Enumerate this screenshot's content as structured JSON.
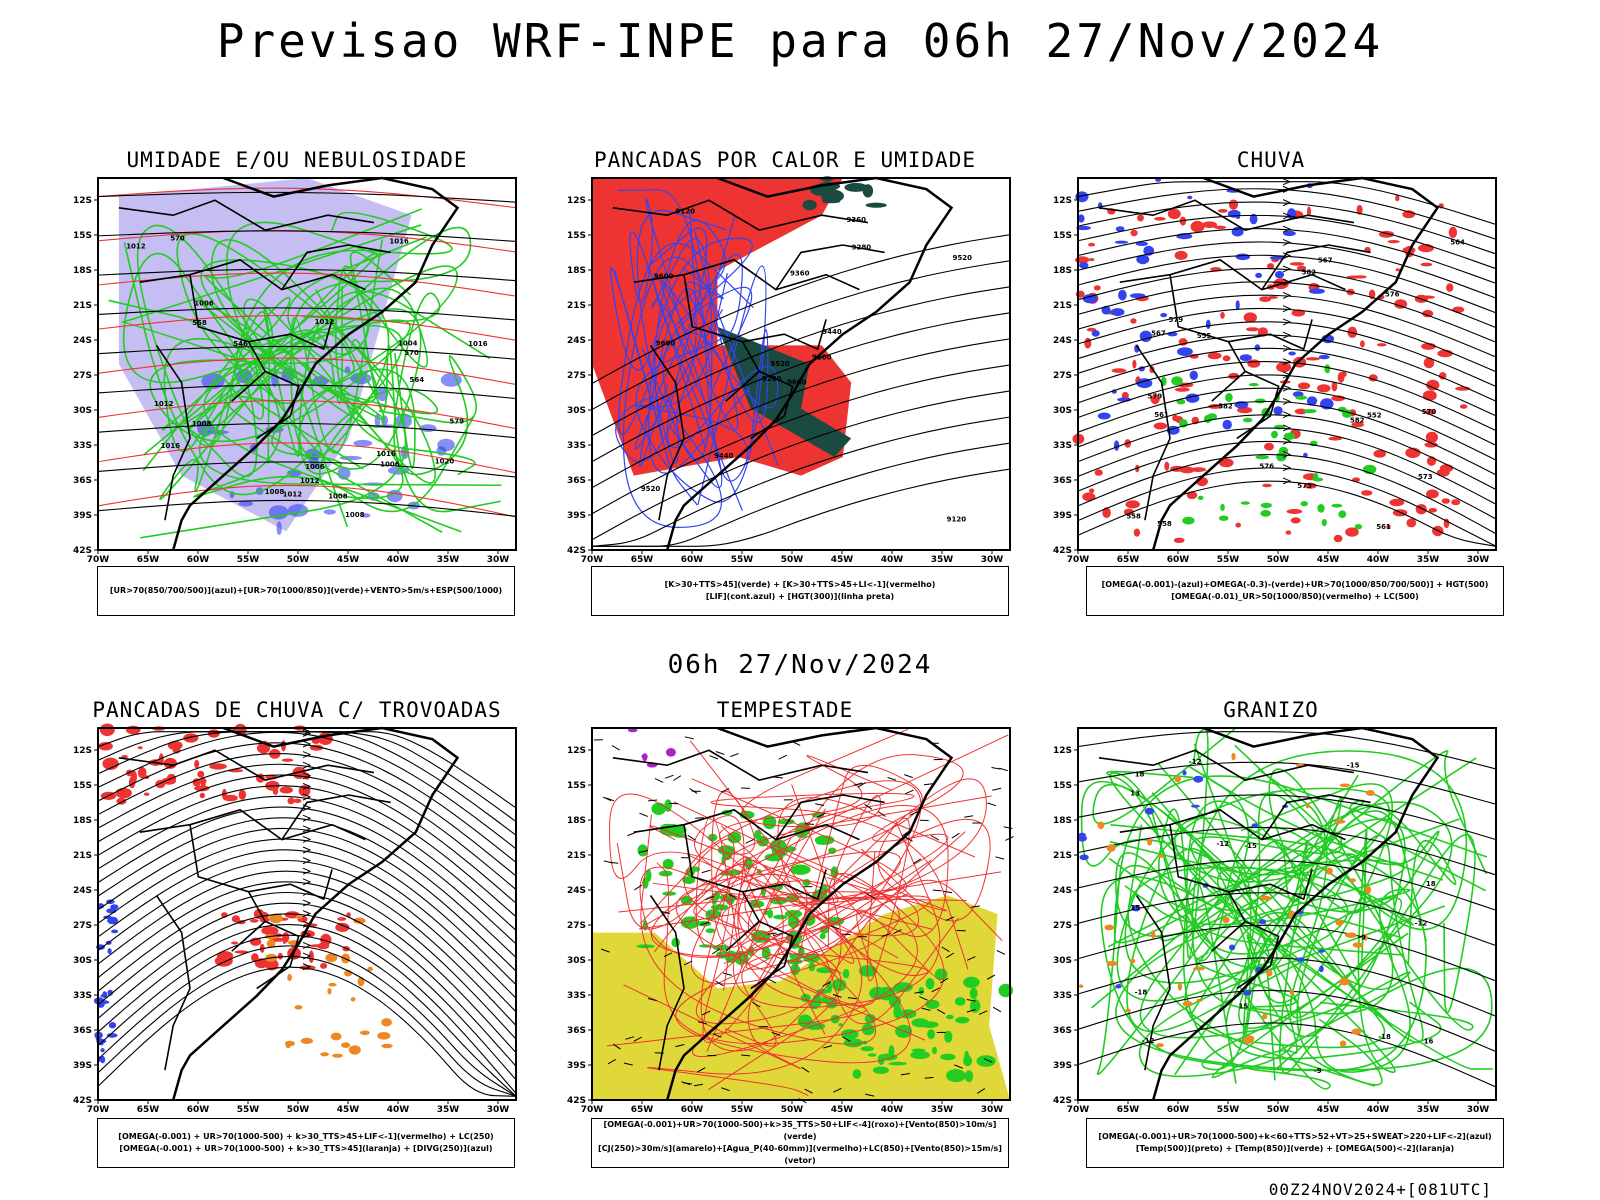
{
  "title": "Previsao WRF-INPE  para 06h 27/Nov/2024",
  "mid_title": "06h 27/Nov/2024",
  "footer": "00Z24NOV2024+[081UTC]",
  "axes": {
    "lat_labels": [
      "12S",
      "15S",
      "18S",
      "21S",
      "24S",
      "27S",
      "30S",
      "33S",
      "36S",
      "39S",
      "42S"
    ],
    "lon_labels": [
      "70W",
      "65W",
      "60W",
      "55W",
      "50W",
      "45W",
      "40W",
      "35W",
      "30W"
    ]
  },
  "colors": {
    "blue": "#3344ee",
    "light_purple": "#b0a8ee",
    "green": "#22cc22",
    "red": "#ee3333",
    "dark_teal": "#1a4a40",
    "orange": "#ee8822",
    "yellow": "#e0d838",
    "purple": "#aa22cc"
  },
  "panels": [
    {
      "id": "umidade",
      "title": "UMIDADE E/OU NEBULOSIDADE",
      "legend": [
        "[UR>70(850/700/500)](azul)+[UR>70(1000/850)](verde)+VENTO>5m/s+ESP(500/1000)"
      ],
      "contour_labels": [
        "1008",
        "1006",
        "1012",
        "1012",
        "1016",
        "1016",
        "1012",
        "1012",
        "1004",
        "1006",
        "1008",
        "1020",
        "1012",
        "1008",
        "1016",
        "1008",
        "1016",
        "1006",
        "579",
        "570",
        "570",
        "564",
        "558",
        "546"
      ]
    },
    {
      "id": "pancadas-calor",
      "title": "PANCADAS POR CALOR E UMIDADE",
      "legend": [
        "[K>30+TTS>45](verde) + [K>30+TTS>45+LI<-1](vermelho)",
        "[LIF](cont.azul) + [HGT(300)](linha preta)"
      ],
      "contour_labels": [
        "9600",
        "9600",
        "9520",
        "9520",
        "9440",
        "9440",
        "9360",
        "9360",
        "9280",
        "9200",
        "9120",
        "9120",
        "9600",
        "9520",
        "9200"
      ]
    },
    {
      "id": "chuva",
      "title": "CHUVA",
      "legend": [
        "[OMEGA(-0.001)-(azul)+OMEGA(-0.3)-(verde)+UR>70(1000/850/700/500)] + HGT(500)",
        "[OMEGA(-0.01)_UR>50(1000/850)(vermelho) + LC(500)"
      ],
      "contour_labels": [
        "582",
        "582",
        "582",
        "579",
        "579",
        "576",
        "576",
        "573",
        "573",
        "570",
        "567",
        "564",
        "561",
        "555",
        "558",
        "552",
        "567",
        "561",
        "558"
      ]
    },
    {
      "id": "trovoadas",
      "title": "PANCADAS DE CHUVA C/ TROVOADAS",
      "legend": [
        "[OMEGA(-0.001) + UR>70(1000-500) + k>30_TTS>45+LIF<-1](vermelho) + LC(250)",
        "[OMEGA(-0.001) + UR>70(1000-500) + k>30_TTS>45](laranja) + [DIVG(250)](azul)"
      ],
      "contour_labels": []
    },
    {
      "id": "tempestade",
      "title": "TEMPESTADE",
      "legend": [
        "[OMEGA(-0.001)+UR>70(1000-500)+k>35_TTS>50+LIF<-4](roxo)+[Vento(850)>10m/s](verde)",
        "[CJ(250)>30m/s](amarelo)+[Agua_P(40-60mm)](vermelho)+LC(850)+[Vento(850)>15m/s](vetor)"
      ],
      "contour_labels": []
    },
    {
      "id": "granizo",
      "title": "GRANIZO",
      "legend": [
        "[OMEGA(-0.001)+UR>70(1000-500)+k<60+TTS>52+VT>25+SWEAT>220+LIF<-2](azul)",
        "[Temp(500)](preto) + [Temp(850)](verde) + [OMEGA(500)<-2](laranja)"
      ],
      "contour_labels": [
        "-9",
        "-12",
        "-12",
        "-12",
        "-15",
        "-18",
        "-18",
        "-15",
        "-12",
        "-9",
        "13",
        "15",
        "18",
        "16",
        "15",
        "18"
      ]
    }
  ]
}
